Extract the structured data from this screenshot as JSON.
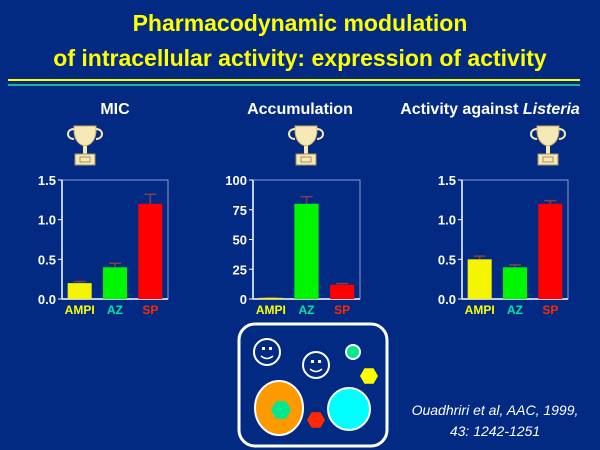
{
  "title_line1": "Pharmacodynamic modulation",
  "title_line2": "of intracellular activity: expression of activity",
  "colors": {
    "background": "#022a82",
    "title": "#ffff00",
    "AMPI": "#f5f500",
    "AZ": "#00f500",
    "SP": "#ff0000",
    "AMPI_label": "#ffff00",
    "AZ_label": "#00e6a0",
    "SP_label": "#ff2a00"
  },
  "icons": [
    "trophy-icon",
    "cell-diagram"
  ],
  "citation_line1": "Ouadhriri et al, AAC, 1999,",
  "citation_line2": "43: 1242-1251",
  "chart_data": [
    {
      "type": "bar",
      "title": "MIC",
      "categories": [
        "AMPI",
        "AZ",
        "SP"
      ],
      "values": [
        0.2,
        0.4,
        1.2
      ],
      "error_upper": [
        0.22,
        0.45,
        1.32
      ],
      "ylim": [
        0,
        1.5
      ],
      "yticks": [
        "0.0",
        "0.5",
        "1.0",
        "1.5"
      ],
      "ytick_values": [
        0,
        0.5,
        1.0,
        1.5
      ]
    },
    {
      "type": "bar",
      "title": "Accumulation",
      "categories": [
        "AMPI",
        "AZ",
        "SP"
      ],
      "values": [
        1,
        80,
        12
      ],
      "error_upper": [
        1,
        86,
        13
      ],
      "ylim": [
        0,
        100
      ],
      "yticks": [
        "0",
        "25",
        "50",
        "75",
        "100"
      ],
      "ytick_values": [
        0,
        25,
        50,
        75,
        100
      ]
    },
    {
      "type": "bar",
      "title": "Activity against ",
      "title_italic": "Listeria",
      "categories": [
        "AMPI",
        "AZ",
        "SP"
      ],
      "values": [
        0.5,
        0.4,
        1.2
      ],
      "error_upper": [
        0.54,
        0.43,
        1.24
      ],
      "ylim": [
        0,
        1.5
      ],
      "yticks": [
        "0.0",
        "0.5",
        "1.0",
        "1.5"
      ],
      "ytick_values": [
        0,
        0.5,
        1.0,
        1.5
      ]
    }
  ]
}
